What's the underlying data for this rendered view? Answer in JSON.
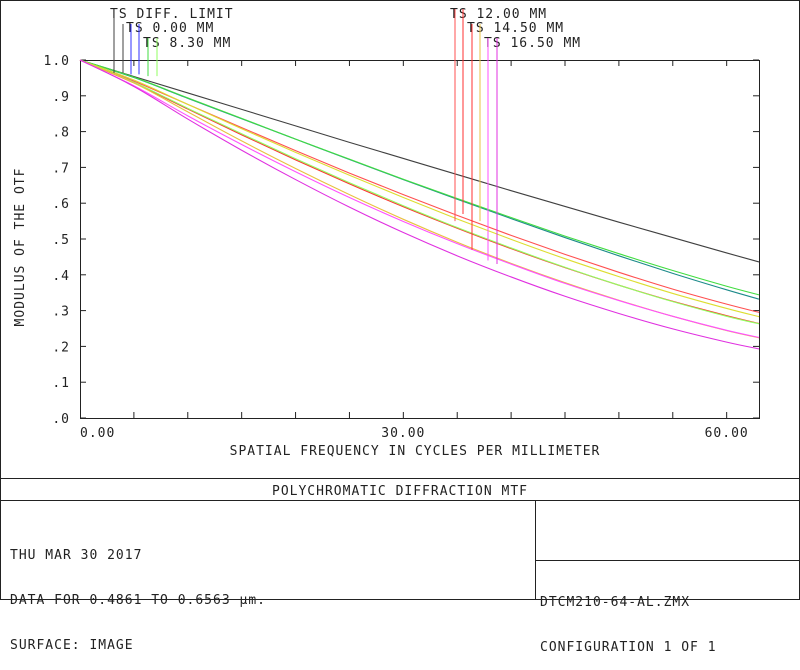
{
  "chart_data": {
    "type": "line",
    "title": "POLYCHROMATIC DIFFRACTION MTF",
    "xlabel": "SPATIAL FREQUENCY IN CYCLES PER MILLIMETER",
    "ylabel": "MODULUS OF THE OTF",
    "xlim": [
      0,
      63
    ],
    "ylim": [
      0,
      1.0
    ],
    "x_ticks": [
      "0.00",
      "30.00",
      "60.00"
    ],
    "x_tick_values": [
      0,
      30,
      60
    ],
    "y_ticks": [
      ".0",
      ".1",
      ".2",
      ".3",
      ".4",
      ".5",
      ".6",
      ".7",
      ".8",
      ".9",
      "1.0"
    ],
    "y_tick_values": [
      0,
      0.1,
      0.2,
      0.3,
      0.4,
      0.5,
      0.6,
      0.7,
      0.8,
      0.9,
      1.0
    ],
    "legend": [
      "TS DIFF. LIMIT",
      "TS 0.00 MM",
      "TS 8.30 MM",
      "TS 12.00 MM",
      "TS 14.50 MM",
      "TS 16.50 MM"
    ],
    "x": [
      0,
      5,
      10,
      15,
      20,
      25,
      30,
      35,
      40,
      45,
      50,
      55,
      60,
      63
    ],
    "series": [
      {
        "color": "#404040",
        "values": [
          1.0,
          0.954,
          0.908,
          0.862,
          0.816,
          0.77,
          0.725,
          0.68,
          0.635,
          0.591,
          0.547,
          0.504,
          0.461,
          0.436
        ]
      },
      {
        "color": "#1c8a8a",
        "values": [
          1.0,
          0.951,
          0.893,
          0.836,
          0.779,
          0.722,
          0.666,
          0.611,
          0.557,
          0.504,
          0.453,
          0.404,
          0.358,
          0.332
        ]
      },
      {
        "color": "#ff5050",
        "values": [
          1.0,
          0.941,
          0.876,
          0.811,
          0.747,
          0.684,
          0.624,
          0.566,
          0.51,
          0.457,
          0.407,
          0.36,
          0.318,
          0.295
        ]
      },
      {
        "color": "#40dd40",
        "values": [
          1.0,
          0.952,
          0.894,
          0.837,
          0.779,
          0.723,
          0.667,
          0.613,
          0.56,
          0.508,
          0.459,
          0.412,
          0.368,
          0.344
        ]
      },
      {
        "color": "#ff3030",
        "values": [
          1.0,
          0.936,
          0.863,
          0.791,
          0.721,
          0.654,
          0.59,
          0.53,
          0.473,
          0.42,
          0.371,
          0.326,
          0.286,
          0.264
        ]
      },
      {
        "color": "#dddd30",
        "values": [
          1.0,
          0.944,
          0.876,
          0.808,
          0.742,
          0.678,
          0.616,
          0.556,
          0.499,
          0.445,
          0.395,
          0.348,
          0.306,
          0.283
        ]
      },
      {
        "color": "#90ff60",
        "values": [
          1.0,
          0.938,
          0.865,
          0.794,
          0.724,
          0.657,
          0.593,
          0.532,
          0.475,
          0.421,
          0.371,
          0.325,
          0.284,
          0.263
        ]
      },
      {
        "color": "#e8c040",
        "values": [
          1.0,
          0.936,
          0.855,
          0.774,
          0.697,
          0.624,
          0.555,
          0.491,
          0.432,
          0.378,
          0.329,
          0.284,
          0.244,
          0.224
        ]
      },
      {
        "color": "#ff50ff",
        "values": [
          1.0,
          0.928,
          0.844,
          0.764,
          0.688,
          0.616,
          0.549,
          0.487,
          0.43,
          0.376,
          0.328,
          0.284,
          0.245,
          0.225
        ]
      },
      {
        "color": "#e030e0",
        "values": [
          1.0,
          0.926,
          0.835,
          0.748,
          0.666,
          0.589,
          0.518,
          0.453,
          0.394,
          0.34,
          0.292,
          0.249,
          0.212,
          0.193
        ]
      }
    ],
    "legend_lines": [
      {
        "color": "#404040",
        "label_index": 0,
        "end_value": 0.964,
        "top": "row1"
      },
      {
        "color": "#404040",
        "label_index": 1,
        "end_value": 0.964,
        "top": "row2"
      },
      {
        "color": "#3030ff",
        "label_index": 1,
        "end_value": 0.96,
        "top": "row2"
      },
      {
        "color": "#3030ff",
        "label_index": 1,
        "end_value": 0.96,
        "top": "row2"
      },
      {
        "color": "#40dd40",
        "label_index": 2,
        "end_value": 0.955,
        "top": "row3"
      },
      {
        "color": "#90ff60",
        "label_index": 2,
        "end_value": 0.955,
        "top": "row3"
      },
      {
        "color": "#ff5050",
        "label_index": 3,
        "end_value": 0.55,
        "top": "row1"
      },
      {
        "color": "#ff3030",
        "label_index": 3,
        "end_value": 0.57,
        "top": "row1"
      },
      {
        "color": "#ff3030",
        "label_index": 4,
        "end_value": 0.47,
        "top": "row2"
      },
      {
        "color": "#e8c040",
        "label_index": 4,
        "end_value": 0.55,
        "top": "row2"
      },
      {
        "color": "#ff50ff",
        "label_index": 5,
        "end_value": 0.44,
        "top": "row3"
      },
      {
        "color": "#e030e0",
        "label_index": 5,
        "end_value": 0.43,
        "top": "row3"
      }
    ],
    "grid": false,
    "legend_placement": "top"
  },
  "footer": {
    "title": "POLYCHROMATIC DIFFRACTION MTF",
    "date": "THU MAR 30 2017",
    "data_range": "DATA FOR 0.4861 TO 0.6563 μm.",
    "surface": "SURFACE: IMAGE",
    "file": "DTCM210-64-AL.ZMX",
    "configuration": "CONFIGURATION 1 OF 1"
  }
}
